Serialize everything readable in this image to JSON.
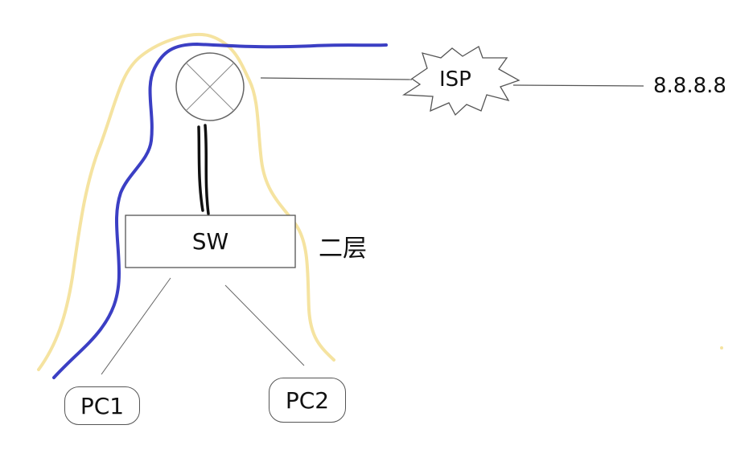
{
  "diagram": {
    "isp": {
      "label": "ISP"
    },
    "destination": {
      "label": "8.8.8.8"
    },
    "switch": {
      "label": "SW",
      "layer_note": "二层"
    },
    "pcs": [
      {
        "label": "PC1"
      },
      {
        "label": "PC2"
      }
    ],
    "colors": {
      "path_blue": "#3b3fc4",
      "path_yellow": "#f5e3a0",
      "link": "#555555",
      "trunk": "#111111"
    }
  }
}
